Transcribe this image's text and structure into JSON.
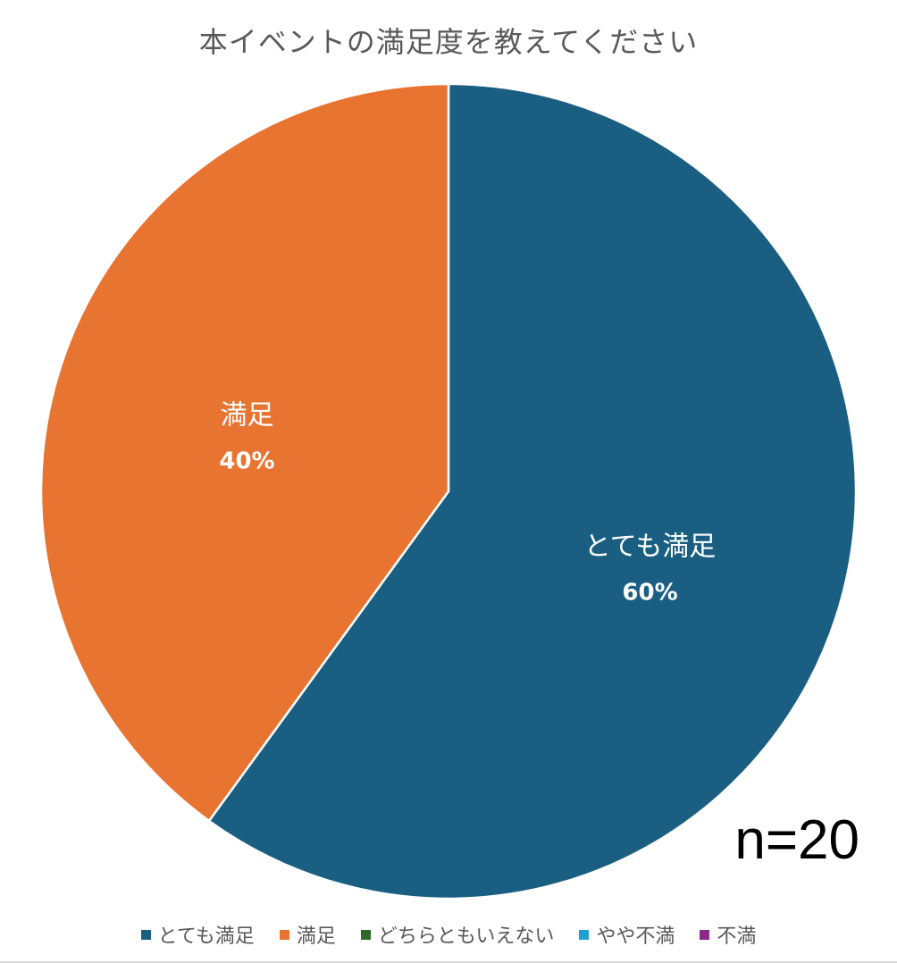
{
  "chart_data": {
    "type": "pie",
    "title": "本イベントの満足度を教えてください",
    "categories": [
      "とても満足",
      "満足",
      "どちらともいえない",
      "やや不満",
      "不満"
    ],
    "values": [
      60,
      40,
      0,
      0,
      0
    ],
    "value_labels": [
      "60%",
      "40%",
      "",
      "",
      ""
    ],
    "colors": [
      "#1a5f82",
      "#e87432",
      "#2d6a27",
      "#1f9fd2",
      "#8b2a8c"
    ],
    "legend_position": "bottom",
    "start_angle": "top, clockwise"
  },
  "annotation": {
    "sample_size": "n=20"
  }
}
